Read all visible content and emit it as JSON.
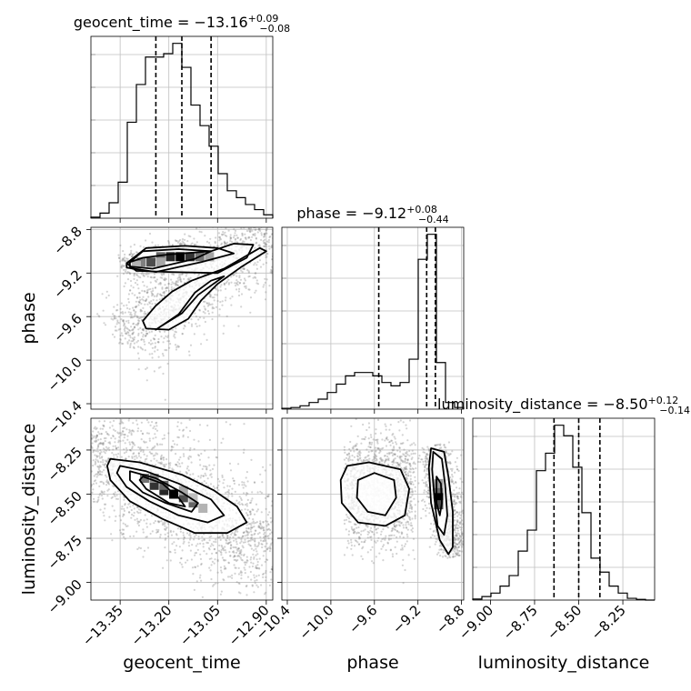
{
  "chart_data": {
    "type": "corner",
    "style": {
      "grid": true,
      "grid_color": "#bfbfbf",
      "line_color": "#000000",
      "point_color": "#808080",
      "quantile_line_style": "dashed"
    },
    "parameters": [
      {
        "name": "geocent_time",
        "median": "-13.16",
        "plus": "+0.09",
        "minus": "-0.08"
      },
      {
        "name": "phase",
        "median": "-9.12",
        "plus": "+0.08",
        "minus": "-0.44"
      },
      {
        "name": "luminosity_distance",
        "median": "-8.50",
        "plus": "+0.12",
        "minus": "-0.14"
      }
    ],
    "axes": {
      "geocent_time": {
        "range": [
          -13.44,
          -12.88
        ],
        "ticks": [
          -13.35,
          -13.2,
          -13.05,
          -12.9
        ],
        "tick_labels": [
          "−13.35",
          "−13.20",
          "−13.05",
          "−12.90"
        ]
      },
      "phase": {
        "range": [
          -10.45,
          -8.78
        ],
        "ticks": [
          -10.4,
          -10.0,
          -9.6,
          -9.2,
          -8.8
        ],
        "tick_labels": [
          "−10.4",
          "−10.0",
          "−9.6",
          "−9.2",
          "−8.8"
        ]
      },
      "luminosity_distance": {
        "range": [
          -9.1,
          -8.07
        ],
        "ticks": [
          -9.0,
          -8.75,
          -8.5,
          -8.25
        ],
        "tick_labels": [
          "−9.00",
          "−8.75",
          "−8.50",
          "−8.25"
        ]
      }
    },
    "histograms": [
      {
        "param": "geocent_time",
        "bin_edges": [
          -13.44,
          -13.412,
          -13.384,
          -13.356,
          -13.328,
          -13.3,
          -13.272,
          -13.244,
          -13.216,
          -13.188,
          -13.16,
          -13.132,
          -13.104,
          -13.076,
          -13.048,
          -13.02,
          -12.992,
          -12.964,
          -12.936,
          -12.908,
          -12.88
        ],
        "counts": [
          0.3,
          1.5,
          4.5,
          10.5,
          28,
          39,
          47,
          47,
          48,
          51,
          44,
          33,
          27,
          21,
          13,
          8,
          6,
          4,
          2.5,
          1
        ],
        "quantiles": [
          -13.24,
          -13.16,
          -13.07
        ]
      },
      {
        "param": "phase",
        "bin_edges": [
          -10.45,
          -10.3665,
          -10.283,
          -10.1995,
          -10.116,
          -10.0325,
          -9.949,
          -9.8655,
          -9.782,
          -9.6985,
          -9.615,
          -9.5315,
          -9.448,
          -9.3645,
          -9.281,
          -9.1975,
          -9.114,
          -9.0305,
          -8.947,
          -8.8635,
          -8.78
        ],
        "counts": [
          0.5,
          1,
          2,
          4,
          6,
          10,
          15,
          20,
          22,
          22,
          20,
          16,
          14,
          16,
          30,
          90,
          105,
          28,
          4,
          1
        ],
        "quantiles": [
          -9.56,
          -9.12,
          -9.04
        ]
      },
      {
        "param": "luminosity_distance",
        "bin_edges": [
          -9.1,
          -9.0485,
          -8.997,
          -8.9455,
          -8.894,
          -8.8425,
          -8.791,
          -8.7395,
          -8.688,
          -8.6365,
          -8.585,
          -8.5335,
          -8.482,
          -8.4305,
          -8.379,
          -8.3275,
          -8.276,
          -8.2245,
          -8.173,
          -8.1215,
          -8.07
        ],
        "counts": [
          0.3,
          1,
          2,
          4,
          7,
          14,
          20,
          37,
          42,
          50,
          47,
          38,
          25,
          12,
          8,
          4,
          2,
          0.5,
          0.2,
          0
        ],
        "quantiles": [
          -8.64,
          -8.5,
          -8.38
        ]
      }
    ],
    "pairs": [
      {
        "x": "geocent_time",
        "y": "phase",
        "scatter_bands": [
          {
            "x0": -13.3,
            "y0": -9.7,
            "x1": -12.92,
            "y1": -8.85,
            "width": 0.22,
            "n": 1600
          },
          {
            "x0": -13.32,
            "y0": -9.12,
            "x1": -13.14,
            "y1": -9.0,
            "width": 0.08,
            "n": 500
          }
        ],
        "contours": [
          [
            [
              -13.32,
              -9.1
            ],
            [
              -13.28,
              -9.0
            ],
            [
              -13.17,
              -8.98
            ],
            [
              -13.07,
              -9.0
            ],
            [
              -13.12,
              -9.07
            ],
            [
              -13.25,
              -9.16
            ],
            [
              -13.32,
              -9.14
            ]
          ],
          [
            [
              -13.33,
              -9.11
            ],
            [
              -13.27,
              -8.97
            ],
            [
              -13.15,
              -8.95
            ],
            [
              -13.05,
              -8.97
            ],
            [
              -13.0,
              -9.02
            ],
            [
              -13.1,
              -9.1
            ],
            [
              -13.24,
              -9.19
            ],
            [
              -13.33,
              -9.15
            ]
          ],
          [
            [
              -13.33,
              -9.11
            ],
            [
              -13.28,
              -9.06
            ],
            [
              -13.2,
              -9.03
            ],
            [
              -13.07,
              -9.0
            ],
            [
              -13.0,
              -8.93
            ],
            [
              -12.94,
              -8.94
            ],
            [
              -12.96,
              -9.06
            ],
            [
              -13.05,
              -9.2
            ],
            [
              -13.2,
              -9.19
            ],
            [
              -13.3,
              -9.18
            ]
          ],
          [
            [
              -13.24,
              -9.72
            ],
            [
              -13.17,
              -9.58
            ],
            [
              -13.12,
              -9.38
            ],
            [
              -13.07,
              -9.27
            ],
            [
              -13.03,
              -9.23
            ],
            [
              -13.11,
              -9.4
            ],
            [
              -13.16,
              -9.57
            ],
            [
              -13.22,
              -9.68
            ]
          ],
          [
            [
              -13.28,
              -9.64
            ],
            [
              -13.24,
              -9.5
            ],
            [
              -13.19,
              -9.37
            ],
            [
              -13.13,
              -9.27
            ],
            [
              -13.03,
              -9.16
            ],
            [
              -12.92,
              -8.97
            ],
            [
              -12.9,
              -9.0
            ],
            [
              -12.98,
              -9.15
            ],
            [
              -13.05,
              -9.3
            ],
            [
              -13.1,
              -9.45
            ],
            [
              -13.14,
              -9.62
            ],
            [
              -13.2,
              -9.72
            ],
            [
              -13.27,
              -9.71
            ]
          ]
        ],
        "density_cells": [
          {
            "x": -13.285,
            "y": -9.1,
            "v": 0.5
          },
          {
            "x": -13.255,
            "y": -9.1,
            "v": 0.7
          },
          {
            "x": -13.225,
            "y": -9.05,
            "v": 0.6
          },
          {
            "x": -13.195,
            "y": -9.05,
            "v": 0.85
          },
          {
            "x": -13.165,
            "y": -9.05,
            "v": 1.0
          },
          {
            "x": -13.135,
            "y": -9.05,
            "v": 0.8
          },
          {
            "x": -13.105,
            "y": -9.05,
            "v": 0.55
          },
          {
            "x": -13.075,
            "y": -9.05,
            "v": 0.35
          },
          {
            "x": -13.225,
            "y": -9.1,
            "v": 0.35
          },
          {
            "x": -13.3,
            "y": -9.13,
            "v": 0.3
          }
        ]
      },
      {
        "x": "geocent_time",
        "y": "luminosity_distance",
        "scatter_bands": [
          {
            "x0": -13.42,
            "y0": -8.25,
            "x1": -12.92,
            "y1": -8.8,
            "width": 0.3,
            "n": 2200
          }
        ],
        "contours": [
          [
            [
              -13.28,
              -8.4
            ],
            [
              -13.22,
              -8.44
            ],
            [
              -13.17,
              -8.52
            ],
            [
              -13.15,
              -8.57
            ],
            [
              -13.2,
              -8.55
            ],
            [
              -13.27,
              -8.47
            ],
            [
              -13.29,
              -8.42
            ]
          ],
          [
            [
              -13.32,
              -8.37
            ],
            [
              -13.24,
              -8.41
            ],
            [
              -13.16,
              -8.49
            ],
            [
              -13.11,
              -8.55
            ],
            [
              -13.13,
              -8.6
            ],
            [
              -13.21,
              -8.55
            ],
            [
              -13.28,
              -8.49
            ],
            [
              -13.32,
              -8.42
            ]
          ],
          [
            [
              -13.35,
              -8.34
            ],
            [
              -13.27,
              -8.37
            ],
            [
              -13.17,
              -8.44
            ],
            [
              -13.07,
              -8.53
            ],
            [
              -13.03,
              -8.62
            ],
            [
              -13.08,
              -8.66
            ],
            [
              -13.17,
              -8.62
            ],
            [
              -13.26,
              -8.54
            ],
            [
              -13.33,
              -8.46
            ],
            [
              -13.36,
              -8.38
            ]
          ],
          [
            [
              -13.38,
              -8.3
            ],
            [
              -13.29,
              -8.32
            ],
            [
              -13.16,
              -8.39
            ],
            [
              -13.06,
              -8.48
            ],
            [
              -12.99,
              -8.57
            ],
            [
              -12.96,
              -8.66
            ],
            [
              -13.02,
              -8.72
            ],
            [
              -13.12,
              -8.72
            ],
            [
              -13.22,
              -8.64
            ],
            [
              -13.32,
              -8.54
            ],
            [
              -13.38,
              -8.42
            ],
            [
              -13.39,
              -8.34
            ]
          ]
        ],
        "density_cells": [
          {
            "x": -13.275,
            "y": -8.41,
            "v": 0.55
          },
          {
            "x": -13.245,
            "y": -8.45,
            "v": 0.8
          },
          {
            "x": -13.215,
            "y": -8.48,
            "v": 0.85
          },
          {
            "x": -13.185,
            "y": -8.5,
            "v": 1.0
          },
          {
            "x": -13.155,
            "y": -8.52,
            "v": 0.7
          },
          {
            "x": -13.125,
            "y": -8.55,
            "v": 0.6
          },
          {
            "x": -13.095,
            "y": -8.58,
            "v": 0.3
          },
          {
            "x": -13.245,
            "y": -8.41,
            "v": 0.45
          },
          {
            "x": -13.215,
            "y": -8.45,
            "v": 0.6
          },
          {
            "x": -13.155,
            "y": -8.48,
            "v": 0.35
          },
          {
            "x": -13.125,
            "y": -8.52,
            "v": 0.25
          }
        ]
      },
      {
        "x": "phase",
        "y": "luminosity_distance",
        "scatter_bands": [
          {
            "x0": -9.8,
            "y0": -8.48,
            "x1": -9.3,
            "y1": -8.48,
            "width": 0.3,
            "n": 1500
          },
          {
            "x0": -9.05,
            "y0": -8.3,
            "x1": -8.88,
            "y1": -8.78,
            "width": 0.09,
            "n": 1100
          }
        ],
        "contours": [
          [
            [
              -9.85,
              -8.34
            ],
            [
              -9.65,
              -8.32
            ],
            [
              -9.36,
              -8.36
            ],
            [
              -9.28,
              -8.47
            ],
            [
              -9.32,
              -8.62
            ],
            [
              -9.5,
              -8.68
            ],
            [
              -9.75,
              -8.66
            ],
            [
              -9.9,
              -8.55
            ],
            [
              -9.91,
              -8.42
            ]
          ],
          [
            [
              -9.75,
              -8.42
            ],
            [
              -9.6,
              -8.38
            ],
            [
              -9.42,
              -8.42
            ],
            [
              -9.4,
              -8.52
            ],
            [
              -9.5,
              -8.62
            ],
            [
              -9.66,
              -8.6
            ],
            [
              -9.76,
              -8.52
            ]
          ],
          [
            [
              -9.06,
              -8.26
            ],
            [
              -8.98,
              -8.3
            ],
            [
              -8.95,
              -8.45
            ],
            [
              -8.93,
              -8.62
            ],
            [
              -8.96,
              -8.73
            ],
            [
              -9.02,
              -8.68
            ],
            [
              -9.05,
              -8.52
            ],
            [
              -9.07,
              -8.36
            ]
          ],
          [
            [
              -9.08,
              -8.24
            ],
            [
              -8.96,
              -8.26
            ],
            [
              -8.92,
              -8.4
            ],
            [
              -8.88,
              -8.6
            ],
            [
              -8.88,
              -8.8
            ],
            [
              -8.92,
              -8.84
            ],
            [
              -9.0,
              -8.76
            ],
            [
              -9.08,
              -8.55
            ],
            [
              -9.1,
              -8.35
            ]
          ],
          [
            [
              -9.03,
              -8.4
            ],
            [
              -8.99,
              -8.44
            ],
            [
              -8.98,
              -8.55
            ],
            [
              -9.0,
              -8.62
            ],
            [
              -9.03,
              -8.55
            ]
          ]
        ],
        "density_cells": [
          {
            "x": -9.01,
            "y": -8.48,
            "v": 0.6
          },
          {
            "x": -9.01,
            "y": -8.52,
            "v": 1.0
          },
          {
            "x": -9.01,
            "y": -8.56,
            "v": 0.7
          },
          {
            "x": -9.01,
            "y": -8.44,
            "v": 0.4
          }
        ]
      }
    ]
  }
}
